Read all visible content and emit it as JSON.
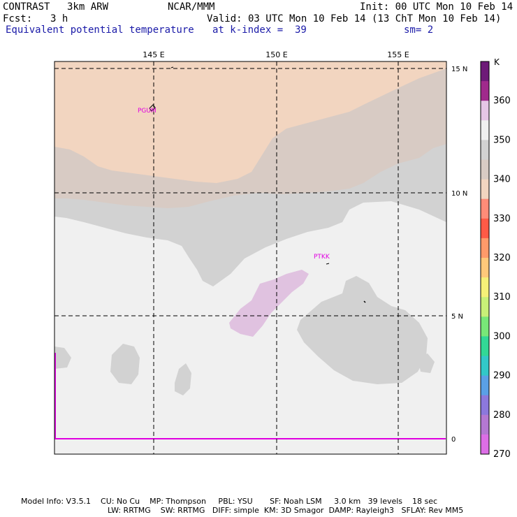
{
  "header": {
    "model": "CONTRAST",
    "resolution_model": "3km ARW",
    "institution": "NCAR/MMM",
    "init": "Init: 00 UTC Mon 10 Feb 14",
    "fcst_label": "Fcst:",
    "fcst_value": "3 h",
    "valid": "Valid: 03 UTC Mon 10 Feb 14 (13 ChT Mon 10 Feb 14)",
    "field": "Equivalent potential temperature",
    "level": "at k-index =  39",
    "smoothing": "sm= 2"
  },
  "map": {
    "lon_labels": [
      "145 E",
      "150 E",
      "155 E"
    ],
    "lat_labels": [
      "15 N",
      "10 N",
      "5 N",
      "0"
    ],
    "stations": [
      "PGUM",
      "PTKK"
    ],
    "colors": {
      "tan": "#f2d5c0",
      "taupe": "#d8cbc4",
      "grey": "#d2d2d2",
      "offwhite": "#f0f0f0",
      "lavender": "#e0c2e0",
      "magenta": "#e000e0"
    }
  },
  "colorbar": {
    "unit": "K",
    "labels": [
      "360",
      "350",
      "340",
      "330",
      "320",
      "310",
      "300",
      "290",
      "280",
      "270"
    ],
    "colors": [
      "#6e1a78",
      "#a02a8c",
      "#e6c6e6",
      "#f0f0f0",
      "#d2d2d2",
      "#d8cbc4",
      "#f2d5c0",
      "#ff8c78",
      "#ff5a46",
      "#ff9a6a",
      "#ffc87a",
      "#f5f078",
      "#c8f078",
      "#78e878",
      "#32d896",
      "#32c8c8",
      "#5aa0e6",
      "#8c78dc",
      "#b478d2",
      "#dc6ee6"
    ]
  },
  "footer": {
    "line1": "Model Info: V3.5.1    CU: No Cu    MP: Thompson     PBL: YSU       SF: Noah LSM     3.0 km   39 levels    18 sec",
    "line2": "LW: RRTMG    SW: RRTMG   DIFF: simple  KM: 3D Smagor  DAMP: Rayleigh3   SFLAY: Rev MM5"
  }
}
